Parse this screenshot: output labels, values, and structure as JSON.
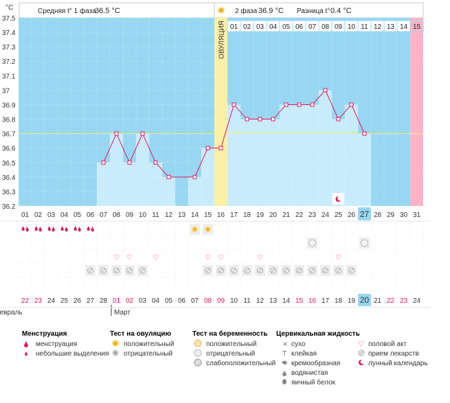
{
  "header": {
    "unit": "°C",
    "phase1_label": "Средняя t° 1 фаза",
    "phase1_value": "36.5 °C",
    "phase2_label": "2 фаза",
    "phase2_value": "36.9 °C",
    "diff_label": "Разница t°",
    "diff_value": "0.4 °C",
    "ovulation_label": "ОВУЛЯЦИЯ"
  },
  "chart_data": {
    "type": "line",
    "title": "",
    "xlabel": "",
    "ylabel": "°C",
    "ylim": [
      36.2,
      37.5
    ],
    "y_ticks": [
      "36.2",
      "36.3",
      "36.4",
      "36.5",
      "36.6",
      "36.7",
      "36.8",
      "36.9",
      "37",
      "37.1",
      "37.2",
      "37.3",
      "37.4",
      "37.5"
    ],
    "cover_line": 36.7,
    "cycle_days": [
      "01",
      "02",
      "03",
      "04",
      "05",
      "06",
      "07",
      "08",
      "09",
      "10",
      "11",
      "12",
      "13",
      "14",
      "15",
      "16",
      "17",
      "18",
      "19",
      "20",
      "21",
      "22",
      "23",
      "24",
      "25",
      "26",
      "27",
      "28",
      "29",
      "30",
      "31"
    ],
    "phase2_day_labels": [
      "01",
      "02",
      "03",
      "04",
      "05",
      "06",
      "07",
      "08",
      "09",
      "10",
      "11",
      "12",
      "13",
      "14",
      "15"
    ],
    "temperatures": [
      null,
      null,
      null,
      null,
      null,
      null,
      36.5,
      36.7,
      36.5,
      36.7,
      36.5,
      36.4,
      null,
      36.4,
      36.6,
      36.6,
      36.9,
      36.8,
      36.8,
      36.8,
      36.9,
      36.9,
      36.9,
      37.0,
      36.8,
      36.9,
      36.7,
      null,
      null,
      null,
      null
    ],
    "ovulation_day": "16",
    "current_day": "27",
    "next_cycle_day": "31",
    "calendar_dates": [
      "22",
      "23",
      "24",
      "25",
      "26",
      "27",
      "28",
      "01",
      "02",
      "03",
      "04",
      "05",
      "06",
      "07",
      "08",
      "09",
      "10",
      "11",
      "12",
      "13",
      "14",
      "15",
      "16",
      "17",
      "18",
      "19",
      "20",
      "21",
      "22",
      "23",
      "24"
    ],
    "weekend_dates": [
      0,
      1,
      7,
      8,
      14,
      15,
      21,
      22,
      28,
      29
    ],
    "today_date_index": 26,
    "months": [
      "Февраль",
      "Март"
    ],
    "march_start_index": 7,
    "rows": {
      "menstruation_days": [
        "01",
        "02",
        "03",
        "04",
        "05",
        "06"
      ],
      "ovulation_test_positive_days": [
        "14",
        "15"
      ],
      "pregnancy_test_negative_days": [
        "23",
        "27"
      ],
      "intercourse_days": [
        "08",
        "09",
        "11",
        "15",
        "16",
        "19",
        "25"
      ],
      "medication_days": [
        "06",
        "07",
        "08",
        "09",
        "10",
        "15",
        "16",
        "17",
        "18",
        "19",
        "20",
        "21",
        "22",
        "23",
        "24",
        "25",
        "26"
      ],
      "lunar_day": "25"
    }
  },
  "legend": {
    "menstruation": {
      "title": "Менструация",
      "items": [
        "менструация",
        "небольшие выделения"
      ]
    },
    "ovulation_test": {
      "title": "Тест на овуляцию",
      "items": [
        "положительный",
        "отрицательный"
      ]
    },
    "pregnancy_test": {
      "title": "Тест на беременность",
      "items": [
        "положительный",
        "отрицательный",
        "слабоположительный"
      ]
    },
    "cervical": {
      "title": "Цервикальная жидкость",
      "items": [
        "сухо",
        "клейкая",
        "кремообразная",
        "водянистая",
        "яичный белок"
      ]
    },
    "other": {
      "items": [
        "половой акт",
        "прием лекарств",
        "лунный календарь"
      ]
    }
  },
  "colors": {
    "background": "#98d7f2",
    "bar": "#c9ecfc",
    "ovulation": "#fcefa6",
    "next_cycle": "#ffb3c6",
    "line": "#e0155d",
    "weekend_text": "#e0155d",
    "today_highlight": "#98d7f2"
  }
}
